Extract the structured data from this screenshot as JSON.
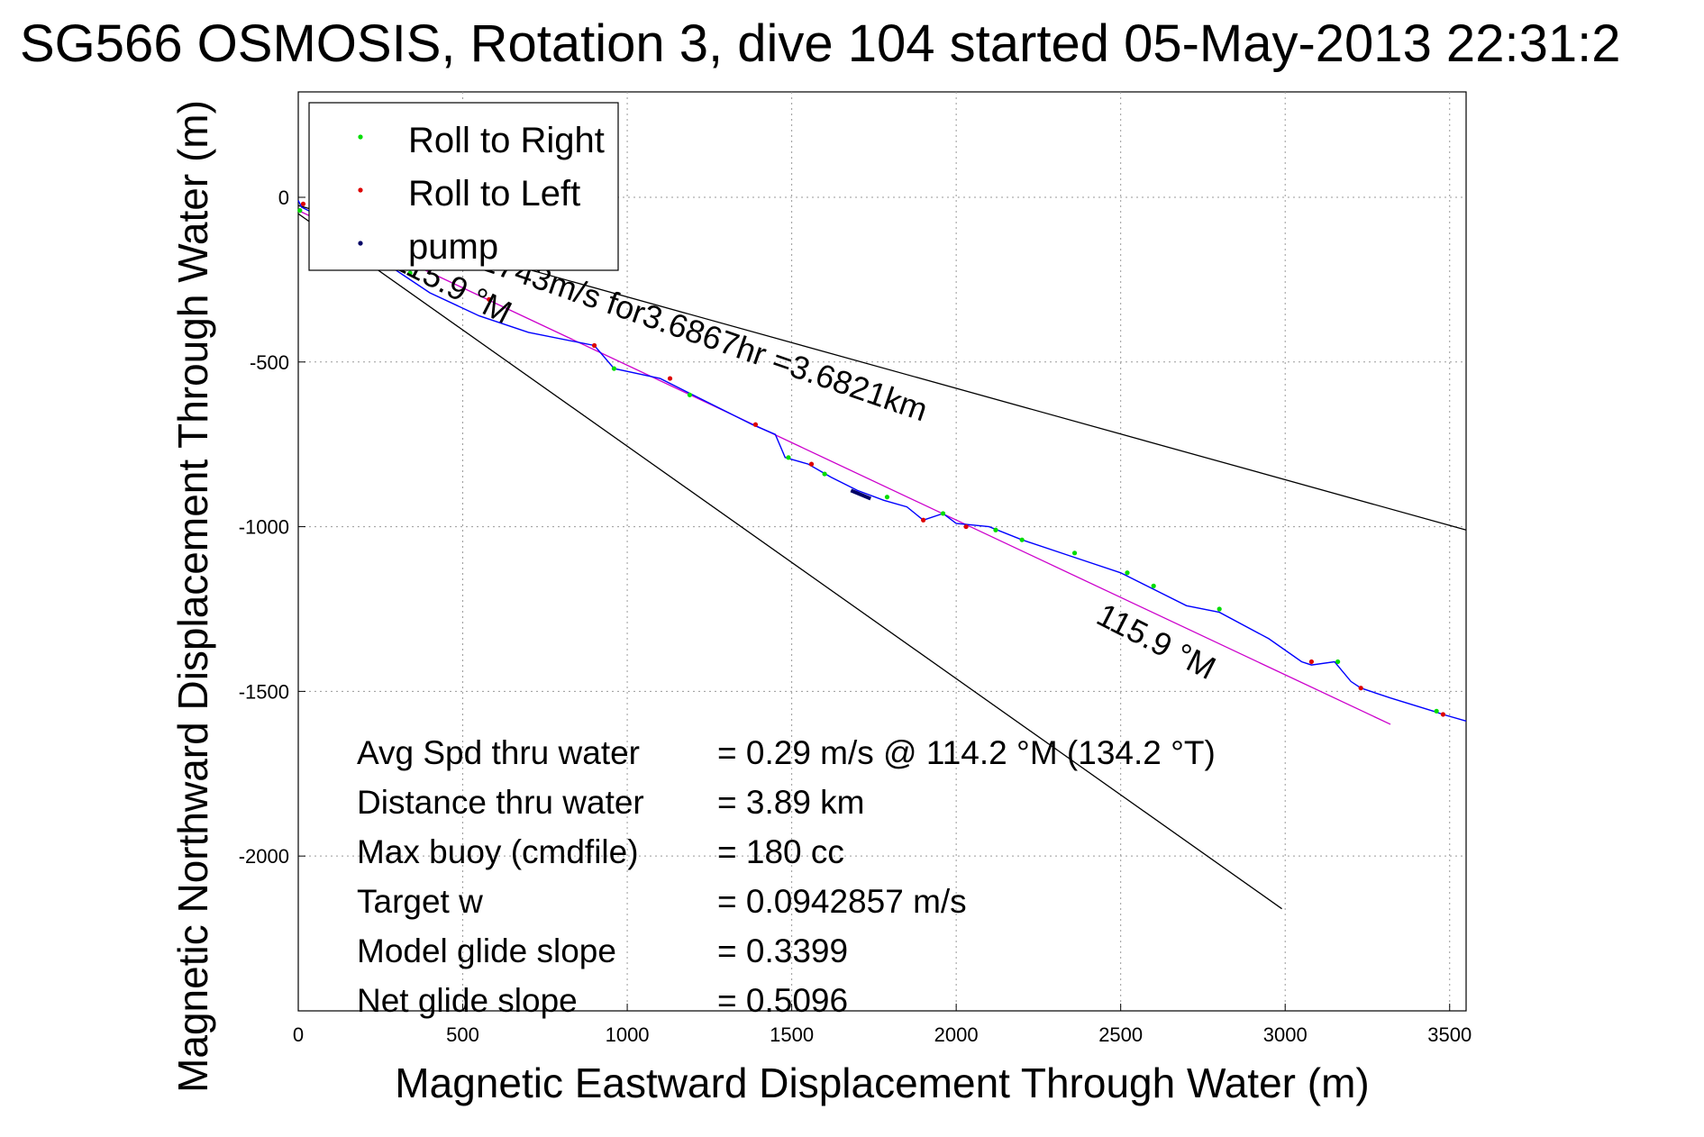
{
  "chart_data": {
    "type": "line",
    "title": "SG566 OSMOSIS, Rotation 3, dive 104 started 05-May-2013 22:31:2",
    "xlabel": "Magnetic Eastward Displacement Through Water (m)",
    "ylabel": "Magnetic Northward Displacement Through Water (m)",
    "xlim": [
      0,
      3550
    ],
    "ylim": [
      -2470,
      320
    ],
    "xticks": [
      0,
      500,
      1000,
      1500,
      2000,
      2500,
      3000,
      3500
    ],
    "yticks": [
      0,
      -500,
      -1000,
      -1500,
      -2000
    ],
    "grid": true,
    "legend_position": "top-left",
    "legend": [
      {
        "label": "Roll to Right",
        "color": "#00dd00"
      },
      {
        "label": "Roll to Left",
        "color": "#dd0000"
      },
      {
        "label": "pump",
        "color": "#000066"
      }
    ],
    "track": {
      "color": "#0000ff",
      "x": [
        0,
        10,
        30,
        80,
        150,
        250,
        400,
        550,
        700,
        900,
        960,
        1100,
        1180,
        1300,
        1380,
        1450,
        1480,
        1550,
        1620,
        1700,
        1780,
        1850,
        1900,
        1960,
        2000,
        2100,
        2200,
        2350,
        2500,
        2580,
        2700,
        2800,
        2950,
        3050,
        3080,
        3150,
        3200,
        3230,
        3320,
        3450,
        3480,
        3550
      ],
      "y": [
        -10,
        -30,
        -40,
        -70,
        -120,
        -190,
        -290,
        -360,
        -410,
        -450,
        -520,
        -550,
        -590,
        -650,
        -690,
        -720,
        -790,
        -810,
        -850,
        -890,
        -920,
        -940,
        -980,
        -960,
        -990,
        -1000,
        -1040,
        -1090,
        -1140,
        -1180,
        -1240,
        -1260,
        -1340,
        -1410,
        -1420,
        -1410,
        -1470,
        -1490,
        -1520,
        -1560,
        -1570,
        -1590
      ]
    },
    "roll_right": {
      "x": [
        5,
        150,
        340,
        960,
        1190,
        1490,
        1600,
        1790,
        1960,
        2120,
        2200,
        2360,
        2520,
        2600,
        2800,
        3160,
        3460
      ],
      "y": [
        -40,
        -120,
        -230,
        -520,
        -600,
        -790,
        -840,
        -910,
        -960,
        -1010,
        -1040,
        -1080,
        -1140,
        -1180,
        -1250,
        -1410,
        -1560
      ]
    },
    "roll_left": {
      "x": [
        15,
        200,
        580,
        900,
        1130,
        1390,
        1560,
        1900,
        2030,
        3080,
        3230,
        3480
      ],
      "y": [
        -20,
        -150,
        -310,
        -450,
        -550,
        -690,
        -810,
        -980,
        -1000,
        -1410,
        -1490,
        -1570
      ]
    },
    "pump": {
      "x": [
        1680,
        1740
      ],
      "y": [
        -890,
        -915
      ]
    },
    "reference_lines": [
      {
        "name": "mean-heading",
        "color": "#cc00cc",
        "x": [
          0,
          3320
        ],
        "y": [
          -40,
          -1600
        ]
      },
      {
        "name": "upper-envelope",
        "color": "#000000",
        "x": [
          0,
          3550
        ],
        "y": [
          -25,
          -1010
        ]
      },
      {
        "name": "lower-envelope",
        "color": "#000000",
        "x": [
          0,
          2990
        ],
        "y": [
          -50,
          -2160
        ]
      }
    ],
    "annotations": [
      {
        "text": "0.2743m/s for3.6867hr =3.6821km",
        "x": 470,
        "y": -190,
        "angle": 19
      },
      {
        "text": "115.9 °M",
        "x": 280,
        "y": -210,
        "angle": 27
      },
      {
        "text": "115.9 °M",
        "x": 2420,
        "y": -1290,
        "angle": 27
      }
    ],
    "stats": [
      {
        "label": "Avg Spd thru water",
        "value": "=  0.29 m/s @ 114.2  °M (134.2 °T)"
      },
      {
        "label": "Distance thru water",
        "value": "=  3.89 km"
      },
      {
        "label": "Max buoy (cmdfile)",
        "value": "= 180 cc"
      },
      {
        "label": "Target w",
        "value": "= 0.0942857 m/s"
      },
      {
        "label": "Model glide slope",
        "value": "= 0.3399"
      },
      {
        "label": "Net glide slope",
        "value": "= 0.5096"
      }
    ]
  }
}
